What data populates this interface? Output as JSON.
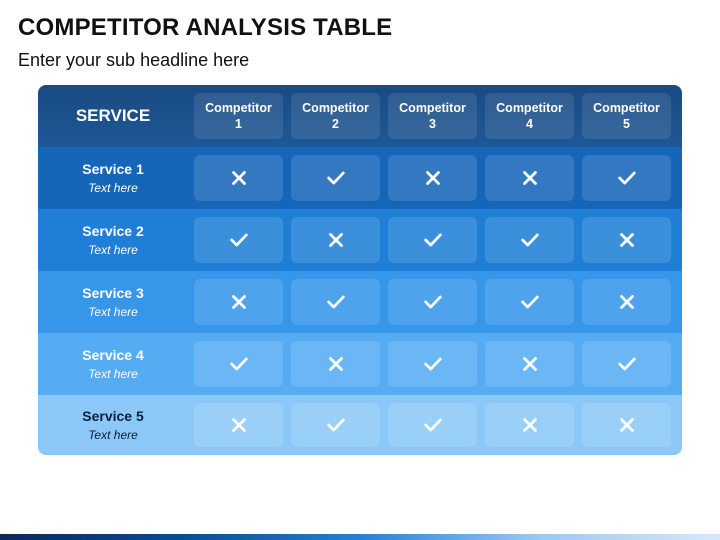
{
  "title": "COMPETITOR ANALYSIS TABLE",
  "subtitle": "Enter your sub headline here",
  "table": {
    "header_label": "SERVICE",
    "competitors": [
      {
        "line1": "Competitor",
        "line2": "1"
      },
      {
        "line1": "Competitor",
        "line2": "2"
      },
      {
        "line1": "Competitor",
        "line2": "3"
      },
      {
        "line1": "Competitor",
        "line2": "4"
      },
      {
        "line1": "Competitor",
        "line2": "5"
      }
    ],
    "rows": [
      {
        "name": "Service 1",
        "sub": "Text here",
        "marks": [
          "cross",
          "check",
          "cross",
          "cross",
          "check"
        ]
      },
      {
        "name": "Service 2",
        "sub": "Text here",
        "marks": [
          "check",
          "cross",
          "check",
          "check",
          "cross"
        ]
      },
      {
        "name": "Service 3",
        "sub": "Text here",
        "marks": [
          "cross",
          "check",
          "check",
          "check",
          "cross"
        ]
      },
      {
        "name": "Service 4",
        "sub": "Text here",
        "marks": [
          "check",
          "cross",
          "check",
          "cross",
          "check"
        ]
      },
      {
        "name": "Service 5",
        "sub": "Text here",
        "marks": [
          "cross",
          "check",
          "check",
          "cross",
          "cross"
        ]
      }
    ]
  },
  "colors": {
    "header_row": "#1b4f8a",
    "row_1": "#1565b8",
    "row_2": "#1f7fd6",
    "row_3": "#3596ea",
    "row_4": "#56acf3",
    "row_5": "#8cc8f7",
    "service_5_text": "#0a1f3a"
  },
  "icons": {
    "check": "check-icon",
    "cross": "cross-icon"
  }
}
